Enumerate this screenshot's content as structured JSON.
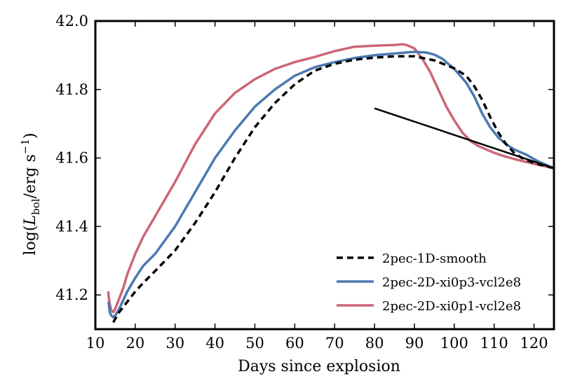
{
  "chart_data": {
    "type": "line",
    "title": "",
    "xlabel": "Days since explosion",
    "ylabel": {
      "prefix": "log(",
      "L": "L",
      "sub": "bol",
      "mid": "/erg s",
      "sup": "−1",
      "suffix": ")"
    },
    "xlim": [
      10,
      125
    ],
    "ylim": [
      41.1,
      42.0
    ],
    "xticks": [
      10,
      20,
      30,
      40,
      50,
      60,
      70,
      80,
      90,
      100,
      110,
      120
    ],
    "yticks": [
      "41.2",
      "41.4",
      "41.6",
      "41.8",
      "42.0"
    ],
    "ytick_values": [
      41.2,
      41.4,
      41.6,
      41.8,
      42.0
    ],
    "legend_position": "bottom-right",
    "colors": {
      "smooth": "#000000",
      "p3": "#4b79b0",
      "p1": "#cc6677",
      "line": "#000000"
    },
    "series": [
      {
        "name": "2pec-1D-smooth",
        "style": "dashed",
        "color": "#000000",
        "x": [
          14.5,
          15,
          16,
          18,
          20,
          22,
          25,
          30,
          35,
          40,
          45,
          50,
          55,
          60,
          65,
          70,
          75,
          80,
          85,
          90,
          95,
          100,
          103,
          105,
          107,
          109,
          111,
          113,
          115,
          117,
          120,
          125
        ],
        "y": [
          41.12,
          41.13,
          41.15,
          41.18,
          41.21,
          41.235,
          41.27,
          41.33,
          41.41,
          41.5,
          41.6,
          41.69,
          41.76,
          41.815,
          41.855,
          41.875,
          41.887,
          41.893,
          41.897,
          41.897,
          41.885,
          41.862,
          41.84,
          41.81,
          41.77,
          41.72,
          41.675,
          41.64,
          41.615,
          41.6,
          41.585,
          41.57
        ]
      },
      {
        "name": "2pec-2D-xi0p3-vcl2e8",
        "style": "solid",
        "color": "#4b79b0",
        "x": [
          13.3,
          13.6,
          14,
          14.5,
          15,
          16,
          18,
          20,
          22,
          25,
          30,
          35,
          40,
          45,
          50,
          55,
          60,
          65,
          70,
          75,
          80,
          85,
          90,
          93,
          95,
          97,
          100,
          103,
          105,
          107,
          109,
          111,
          113,
          115,
          118,
          121,
          125
        ],
        "y": [
          41.18,
          41.15,
          41.14,
          41.135,
          41.14,
          41.16,
          41.21,
          41.25,
          41.285,
          41.32,
          41.4,
          41.5,
          41.6,
          41.68,
          41.75,
          41.8,
          41.84,
          41.865,
          41.88,
          41.892,
          41.9,
          41.905,
          41.91,
          41.908,
          41.902,
          41.89,
          41.86,
          41.82,
          41.78,
          41.73,
          41.69,
          41.66,
          41.64,
          41.625,
          41.61,
          41.59,
          41.57
        ]
      },
      {
        "name": "2pec-2D-xi0p1-vcl2e8",
        "style": "solid",
        "color": "#cc6677",
        "x": [
          13.2,
          13.5,
          14,
          14.5,
          15,
          16,
          17,
          18,
          20,
          22,
          25,
          30,
          35,
          40,
          45,
          50,
          55,
          60,
          65,
          70,
          75,
          80,
          85,
          87,
          88,
          90,
          92,
          94,
          96,
          98,
          100,
          102,
          104,
          106,
          108,
          110,
          112,
          115,
          120,
          125
        ],
        "y": [
          41.21,
          41.18,
          41.155,
          41.15,
          41.16,
          41.19,
          41.22,
          41.26,
          41.32,
          41.37,
          41.43,
          41.53,
          41.64,
          41.73,
          41.79,
          41.83,
          41.86,
          41.88,
          41.895,
          41.912,
          41.925,
          41.928,
          41.93,
          41.932,
          41.93,
          41.92,
          41.89,
          41.85,
          41.8,
          41.75,
          41.71,
          41.675,
          41.65,
          41.635,
          41.625,
          41.615,
          41.607,
          41.597,
          41.583,
          41.57
        ]
      }
    ],
    "reference_line": {
      "name": "",
      "x": [
        80,
        125
      ],
      "y": [
        41.745,
        41.57
      ]
    }
  }
}
